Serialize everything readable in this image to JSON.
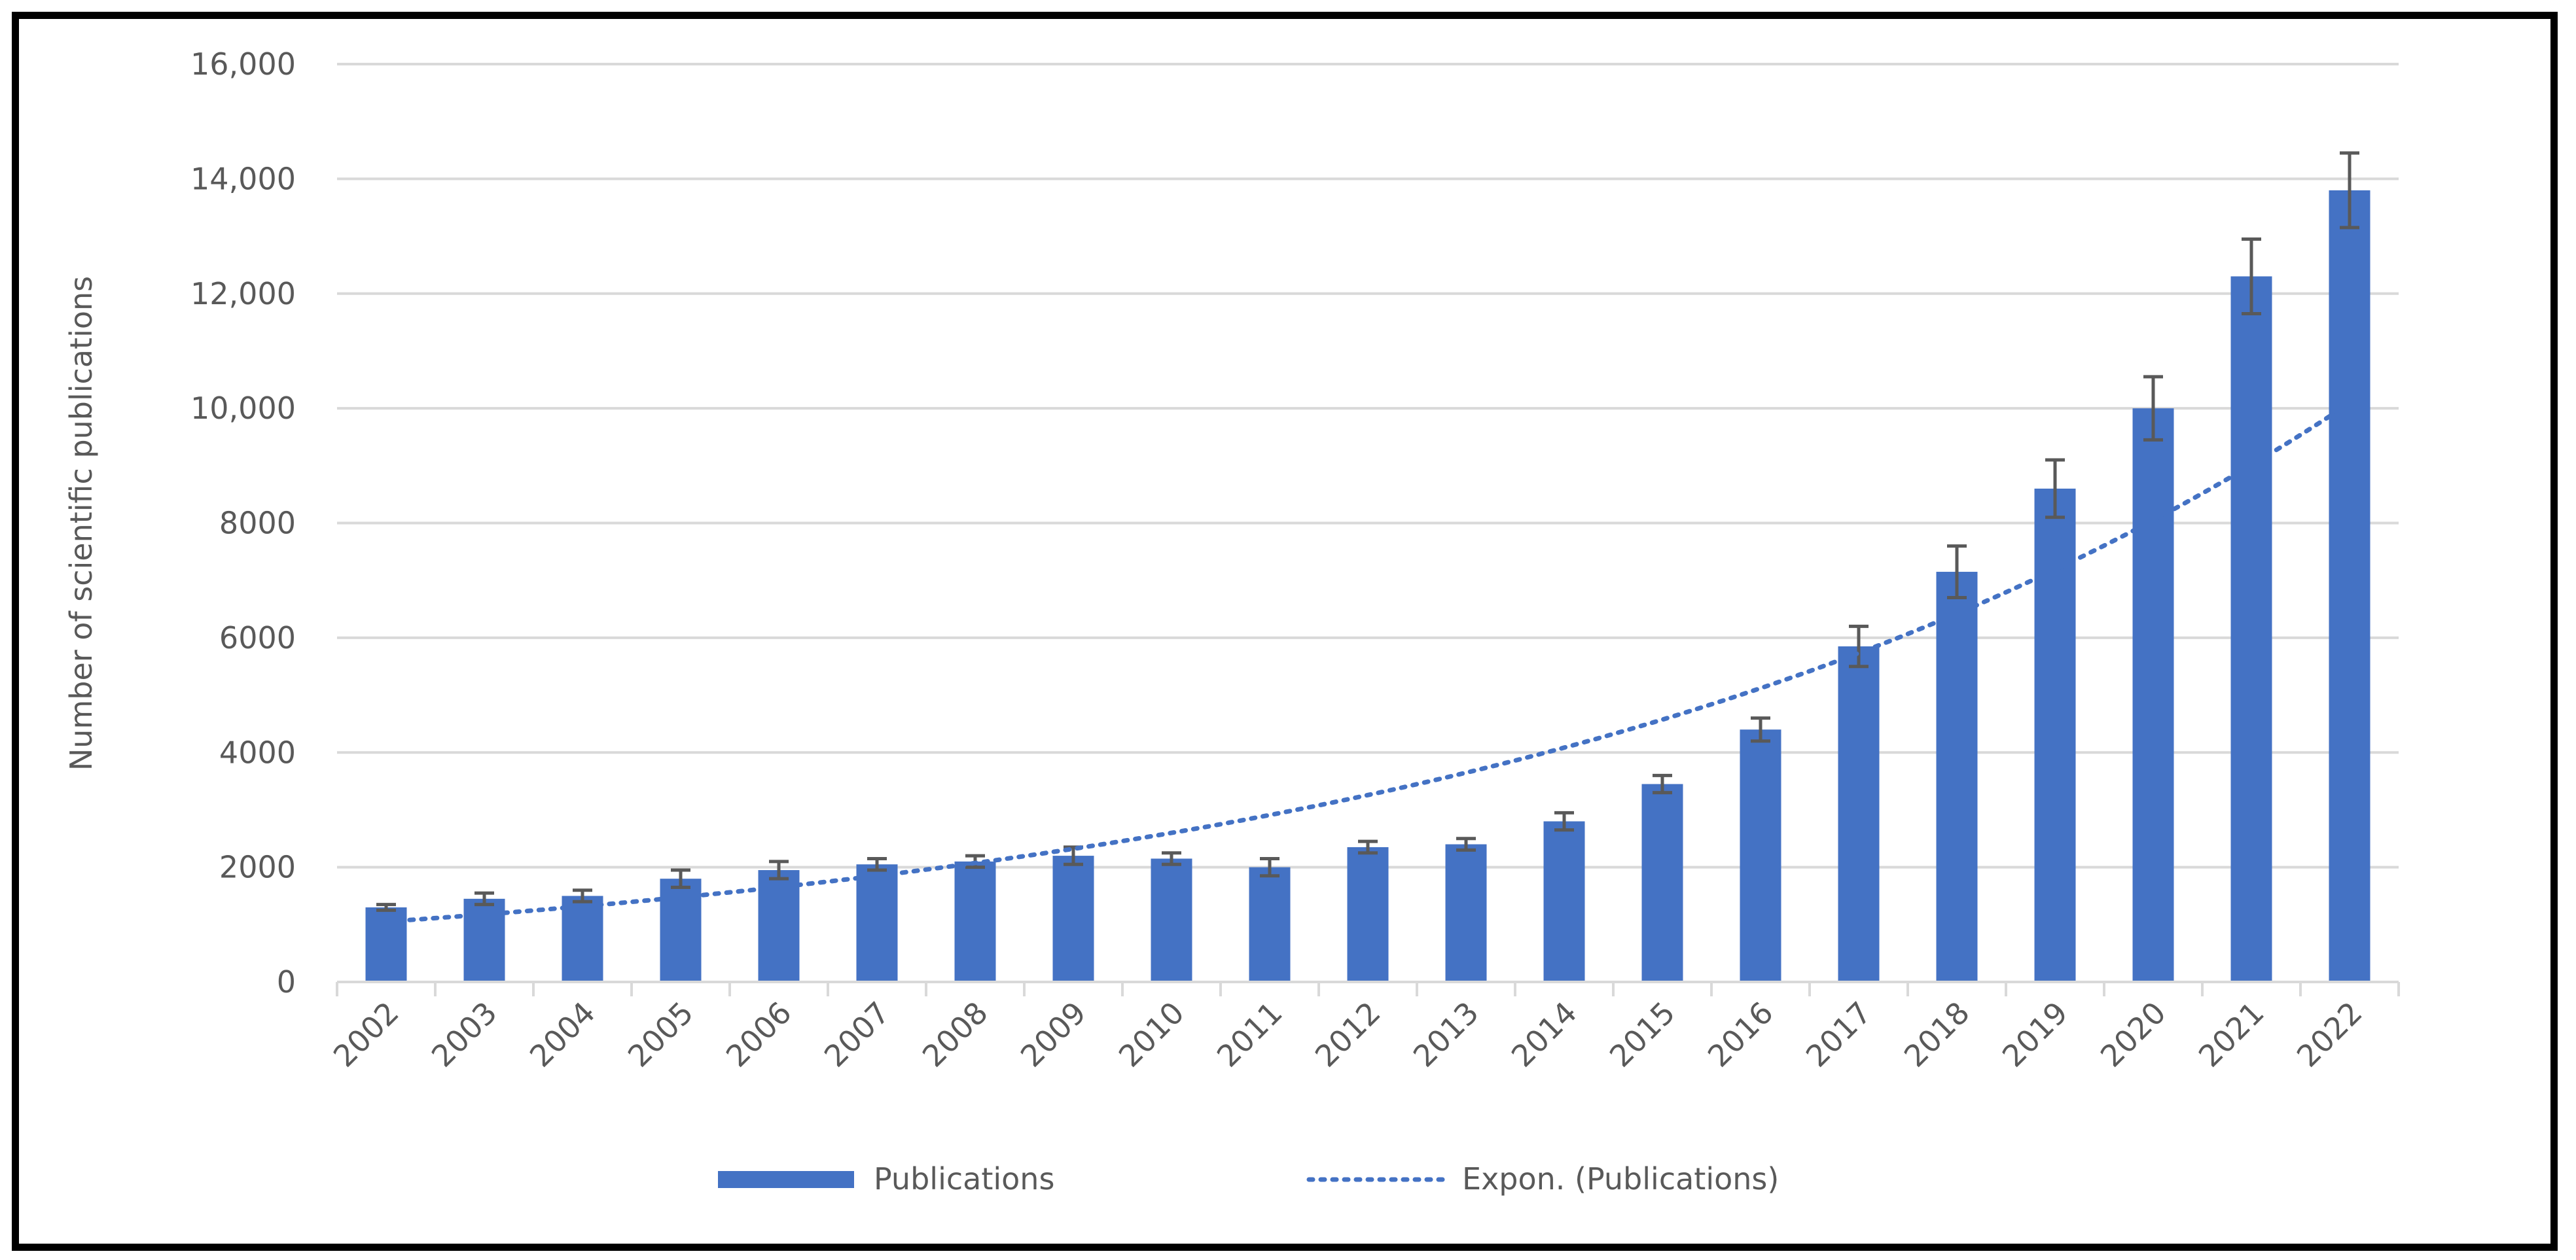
{
  "chart_data": {
    "type": "bar",
    "title": "",
    "xlabel": "",
    "ylabel": "Number of scientific publications",
    "ylim": [
      0,
      16000
    ],
    "yticks": [
      0,
      2000,
      4000,
      6000,
      8000,
      10000,
      12000,
      14000,
      16000
    ],
    "ytick_labels": [
      "0",
      "2000",
      "4000",
      "6000",
      "8000",
      "10,000",
      "12,000",
      "14,000",
      "16,000"
    ],
    "grid": true,
    "legend_position": "bottom",
    "categories": [
      "2002",
      "2003",
      "2004",
      "2005",
      "2006",
      "2007",
      "2008",
      "2009",
      "2010",
      "2011",
      "2012",
      "2013",
      "2014",
      "2015",
      "2016",
      "2017",
      "2018",
      "2019",
      "2020",
      "2021",
      "2022"
    ],
    "series": [
      {
        "name": "Publications",
        "type": "bar",
        "color": "#4472C4",
        "values": [
          1300,
          1450,
          1500,
          1800,
          1950,
          2050,
          2100,
          2200,
          2150,
          2000,
          2350,
          2400,
          2800,
          3450,
          4400,
          5850,
          7150,
          8600,
          10000,
          12300,
          13800
        ],
        "error": [
          50,
          100,
          100,
          150,
          150,
          100,
          100,
          150,
          100,
          150,
          100,
          100,
          150,
          150,
          200,
          350,
          450,
          500,
          550,
          650,
          650
        ]
      },
      {
        "name": "Expon. (Publications)",
        "type": "trendline-exponential",
        "color": "#4472C4",
        "style": "dotted"
      }
    ],
    "error_bar_color": "#595959"
  }
}
